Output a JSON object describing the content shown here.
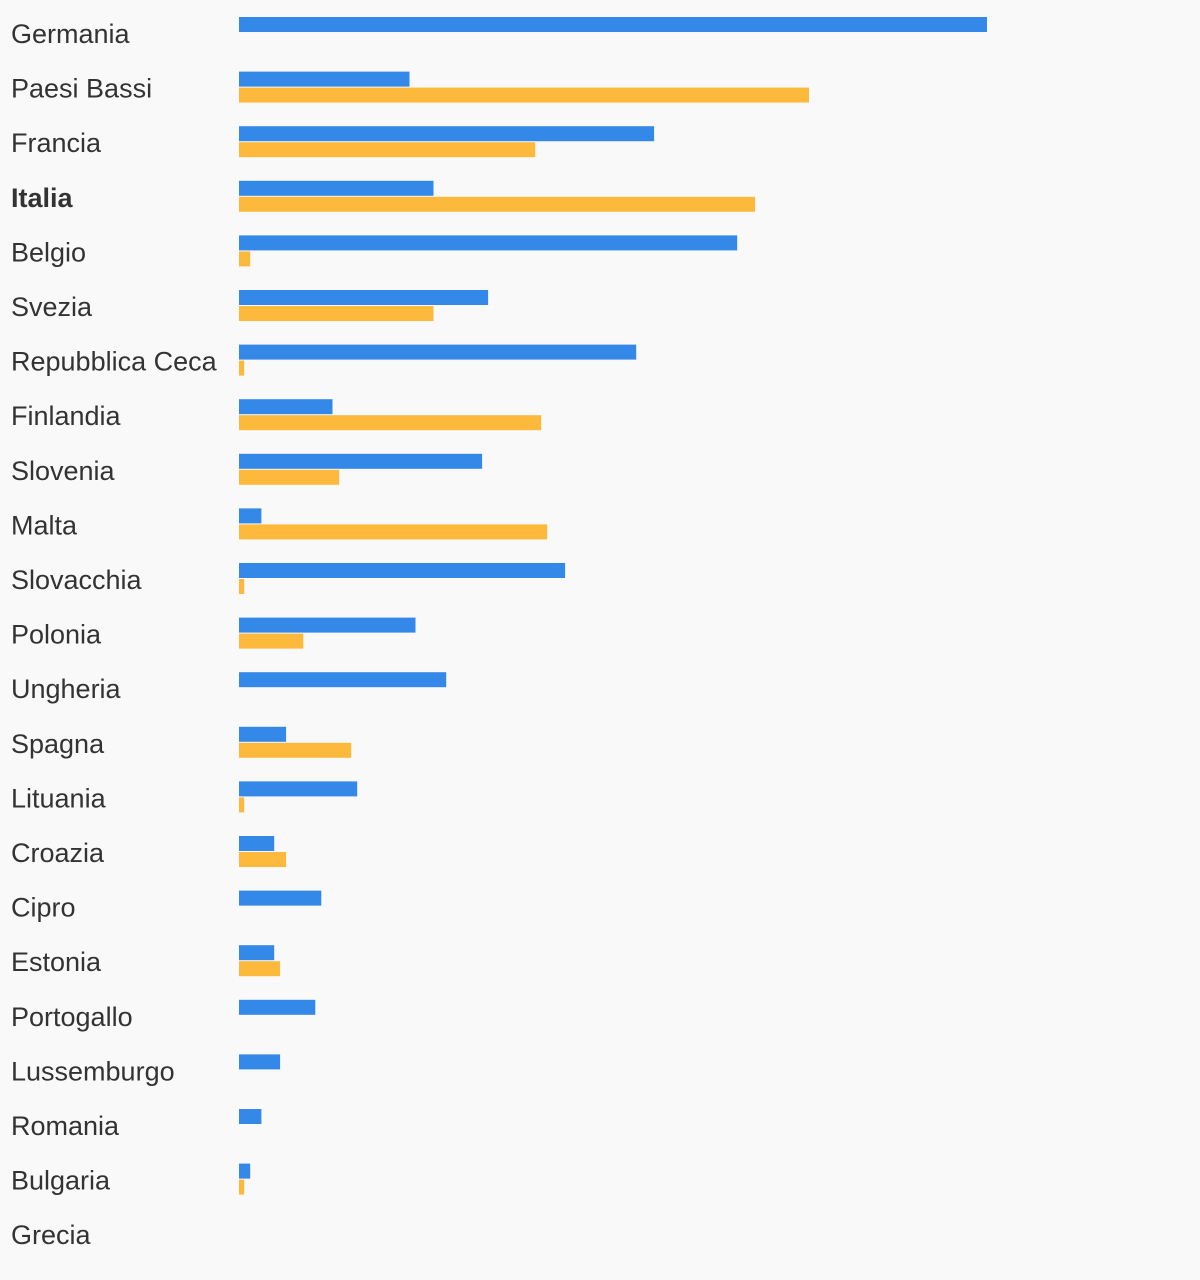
{
  "chart_data": {
    "type": "bar",
    "orientation": "horizontal",
    "title": "",
    "xlabel": "",
    "ylabel": "",
    "legend": "none",
    "grid": false,
    "highlighted_category": "Italia",
    "categories": [
      "Germania",
      "Paesi Bassi",
      "Francia",
      "Italia",
      "Belgio",
      "Svezia",
      "Repubblica Ceca",
      "Finlandia",
      "Slovenia",
      "Malta",
      "Slovacchia",
      "Polonia",
      "Ungheria",
      "Spagna",
      "Lituania",
      "Croazia",
      "Cipro",
      "Estonia",
      "Portogallo",
      "Lussemburgo",
      "Romania",
      "Bulgaria",
      "Grecia"
    ],
    "xlim": [
      0,
      100
    ],
    "series": [
      {
        "color": "#3388e8",
        "values": [
          100,
          22.8,
          55.5,
          26.0,
          66.6,
          33.3,
          53.1,
          12.5,
          32.5,
          3.0,
          43.6,
          23.6,
          27.7,
          6.3,
          15.8,
          4.7,
          11.0,
          4.7,
          10.2,
          5.5,
          3.0,
          1.5,
          0
        ]
      },
      {
        "color": "#fdb93c",
        "values": [
          0,
          76.2,
          39.6,
          69.0,
          1.5,
          26.0,
          0.7,
          40.4,
          13.4,
          41.2,
          0.7,
          8.6,
          0,
          15.0,
          0.7,
          6.3,
          0,
          5.5,
          0,
          0,
          0,
          0.7,
          0
        ]
      }
    ]
  }
}
